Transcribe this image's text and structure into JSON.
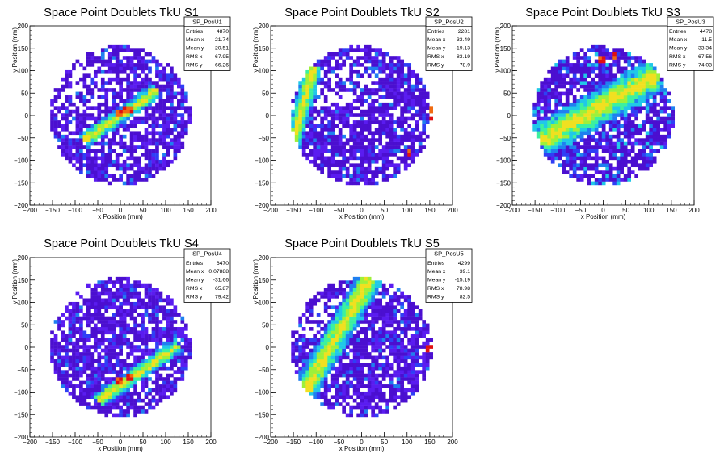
{
  "chart_data": [
    {
      "type": "heatmap",
      "title": "Space Point Doublets TkU S1",
      "xlabel": "x Position (mm)",
      "ylabel": "y Position (mm)",
      "xlim": [
        -200,
        200
      ],
      "ylim": [
        -200,
        200
      ],
      "x_ticks": [
        "−200",
        "−150",
        "−100",
        "−50",
        "0",
        "50",
        "100",
        "150",
        "200"
      ],
      "y_ticks": [
        "200",
        "150",
        "100",
        "50",
        "0",
        "−50",
        "−100",
        "−150",
        "−200"
      ],
      "stats": {
        "name": "SP_PosU1",
        "rows": [
          {
            "label": "Entries",
            "value": "4870"
          },
          {
            "label": "Mean x",
            "value": "21.74"
          },
          {
            "label": "Mean y",
            "value": "20.51"
          },
          {
            "label": "RMS x",
            "value": "67.95"
          },
          {
            "label": "RMS y",
            "value": "66.26"
          }
        ]
      },
      "pattern": {
        "radius": 155,
        "center": [
          0,
          0
        ],
        "band_angle": 35,
        "band_offset": 0,
        "band_width": 18,
        "band_extent": [
          -100,
          100
        ],
        "peak": [
          20,
          10
        ],
        "hot": [
          [
            10,
            10
          ],
          [
            20,
            15
          ],
          [
            0,
            5
          ]
        ],
        "hole_extent": [
          -150,
          -20
        ]
      }
    },
    {
      "type": "heatmap",
      "title": "Space Point Doublets TkU S2",
      "xlabel": "x Position (mm)",
      "ylabel": "y Position (mm)",
      "xlim": [
        -200,
        200
      ],
      "ylim": [
        -200,
        200
      ],
      "x_ticks": [
        "−200",
        "−150",
        "−100",
        "−50",
        "0",
        "50",
        "100",
        "150",
        "200"
      ],
      "y_ticks": [
        "200",
        "150",
        "100",
        "50",
        "0",
        "−50",
        "−100",
        "−150",
        "−200"
      ],
      "stats": {
        "name": "SP_PosU2",
        "rows": [
          {
            "label": "Entries",
            "value": "2281"
          },
          {
            "label": "Mean x",
            "value": "33.49"
          },
          {
            "label": "Mean y",
            "value": "-19.13"
          },
          {
            "label": "RMS x",
            "value": "83.19"
          },
          {
            "label": "RMS y",
            "value": "78.9"
          }
        ]
      },
      "pattern": {
        "radius": 155,
        "center": [
          0,
          0
        ],
        "band_angle": 75,
        "band_offset": 130,
        "band_width": 20,
        "band_extent": [
          -150,
          80
        ],
        "peak": [
          150,
          -10
        ],
        "hot": [
          [
            155,
            10
          ],
          [
            155,
            -10
          ],
          [
            105,
            -80
          ]
        ],
        "hole_extent": [
          -150,
          40
        ]
      }
    },
    {
      "type": "heatmap",
      "title": "Space Point Doublets TkU S3",
      "xlabel": "x Position (mm)",
      "ylabel": "y Position (mm)",
      "xlim": [
        -200,
        200
      ],
      "ylim": [
        -200,
        200
      ],
      "x_ticks": [
        "−200",
        "−150",
        "−100",
        "−50",
        "0",
        "50",
        "100",
        "150",
        "200"
      ],
      "y_ticks": [
        "200",
        "150",
        "100",
        "50",
        "0",
        "−50",
        "−100",
        "−150",
        "−200"
      ],
      "stats": {
        "name": "SP_PosU3",
        "rows": [
          {
            "label": "Entries",
            "value": "4478"
          },
          {
            "label": "Mean x",
            "value": "11.5"
          },
          {
            "label": "Mean y",
            "value": "33.34"
          },
          {
            "label": "RMS x",
            "value": "67.56"
          },
          {
            "label": "RMS y",
            "value": "74.03"
          }
        ]
      },
      "pattern": {
        "radius": 155,
        "center": [
          0,
          0
        ],
        "band_angle": 30,
        "band_offset": 20,
        "band_width": 40,
        "band_extent": [
          -150,
          150
        ],
        "peak": [
          10,
          120
        ],
        "hot": [
          [
            0,
            125
          ],
          [
            25,
            130
          ]
        ],
        "hole_extent": [
          -150,
          -100
        ]
      }
    },
    {
      "type": "heatmap",
      "title": "Space Point Doublets TkU S4",
      "xlabel": "x Position (mm)",
      "ylabel": "y Position (mm)",
      "xlim": [
        -200,
        200
      ],
      "ylim": [
        -200,
        200
      ],
      "x_ticks": [
        "−200",
        "−150",
        "−100",
        "−50",
        "0",
        "50",
        "100",
        "150",
        "200"
      ],
      "y_ticks": [
        "200",
        "150",
        "100",
        "50",
        "0",
        "−50",
        "−100",
        "−150",
        "−200"
      ],
      "stats": {
        "name": "SP_PosU4",
        "rows": [
          {
            "label": "Entries",
            "value": "6470"
          },
          {
            "label": "Mean x",
            "value": "0.07888"
          },
          {
            "label": "Mean y",
            "value": "-31.66"
          },
          {
            "label": "RMS x",
            "value": "65.87"
          },
          {
            "label": "RMS y",
            "value": "79.42"
          }
        ]
      },
      "pattern": {
        "radius": 155,
        "center": [
          0,
          0
        ],
        "band_angle": 35,
        "band_offset": -70,
        "band_width": 18,
        "band_extent": [
          -110,
          110
        ],
        "peak": [
          10,
          -70
        ],
        "hot": [
          [
            20,
            -65
          ],
          [
            -5,
            -75
          ]
        ],
        "hole_extent": [
          -150,
          -120
        ]
      }
    },
    {
      "type": "heatmap",
      "title": "Space Point Doublets TkU S5",
      "xlabel": "x Position (mm)",
      "ylabel": "y Position (mm)",
      "xlim": [
        -200,
        200
      ],
      "ylim": [
        -200,
        200
      ],
      "x_ticks": [
        "−200",
        "−150",
        "−100",
        "−50",
        "0",
        "50",
        "100",
        "150",
        "200"
      ],
      "y_ticks": [
        "200",
        "150",
        "100",
        "50",
        "0",
        "−50",
        "−100",
        "−150",
        "−200"
      ],
      "stats": {
        "name": "SP_PosU5",
        "rows": [
          {
            "label": "Entries",
            "value": "4299"
          },
          {
            "label": "Mean x",
            "value": "39.1"
          },
          {
            "label": "Mean y",
            "value": "-15.19"
          },
          {
            "label": "RMS x",
            "value": "78.98"
          },
          {
            "label": "RMS y",
            "value": "82.5"
          }
        ]
      },
      "pattern": {
        "radius": 155,
        "center": [
          0,
          0
        ],
        "band_angle": 60,
        "band_offset": 60,
        "band_width": 30,
        "band_extent": [
          -150,
          150
        ],
        "peak": [
          145,
          0
        ],
        "hot": [
          [
            150,
            -5
          ]
        ],
        "hole_extent": [
          -150,
          -20
        ]
      }
    }
  ],
  "palette": [
    "#4b0fd0",
    "#5a1cf0",
    "#2f3ff5",
    "#1f7ff0",
    "#20c8e8",
    "#3cf0a0",
    "#9ef03a",
    "#f0e020",
    "#f06a10",
    "#e01010"
  ]
}
